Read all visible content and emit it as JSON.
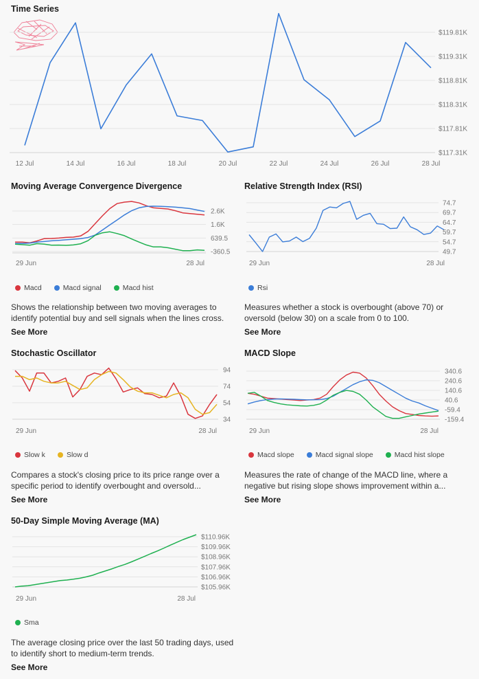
{
  "colors": {
    "blue": "#3b7dd8",
    "red": "#d9363e",
    "green": "#1fb050",
    "yellow": "#e6b422",
    "grid": "#e3e3e3",
    "axis": "#777777"
  },
  "time_series": {
    "title": "Time Series",
    "logo_icon": "pink-scribble-logo"
  },
  "macd": {
    "title": "Moving Average Convergence Divergence",
    "description": "Shows the relationship between two moving averages to identify potential buy and sell signals when the lines cross.",
    "see_more": "See More"
  },
  "rsi": {
    "title": "Relative Strength Index (RSI)",
    "description": "Measures whether a stock is overbought (above 70) or oversold (below 30) on a scale from 0 to 100.",
    "see_more": "See More"
  },
  "stoch": {
    "title": "Stochastic Oscillator",
    "description": "Compares a stock's closing price to its price range over a specific period to identify overbought and oversold...",
    "see_more": "See More"
  },
  "macd_slope": {
    "title": "MACD Slope",
    "description": "Measures the rate of change of the MACD line, where a negative but rising slope shows improvement within a...",
    "see_more": "See More"
  },
  "sma": {
    "title": "50-Day Simple Moving Average (MA)",
    "description": "The average closing price over the last 50 trading days, used to identify short to medium-term trends.",
    "see_more": "See More"
  },
  "chart_data": [
    {
      "id": "time_series",
      "type": "line",
      "title": "Time Series",
      "x_ticks": [
        "12 Jul",
        "14 Jul",
        "16 Jul",
        "18 Jul",
        "20 Jul",
        "22 Jul",
        "24 Jul",
        "26 Jul",
        "28 Jul"
      ],
      "y_ticks": [
        "$119.81K",
        "$119.31K",
        "$118.81K",
        "$118.31K",
        "$117.81K",
        "$117.31K"
      ],
      "ylim": [
        117.31,
        119.81
      ],
      "series": [
        {
          "x": [
            12,
            13,
            14,
            15,
            16,
            17,
            18,
            19,
            20,
            21,
            22,
            23,
            24,
            25,
            26,
            27,
            28
          ],
          "values": [
            117.45,
            119.05,
            119.82,
            117.77,
            118.62,
            119.22,
            118.02,
            117.93,
            117.32,
            117.42,
            120.0,
            118.72,
            118.33,
            117.62,
            117.92,
            119.44,
            118.95
          ],
          "color": "blue"
        }
      ]
    },
    {
      "id": "macd",
      "type": "line",
      "title": "Moving Average Convergence Divergence",
      "x_ticks": [
        "29 Jun",
        "28 Jul"
      ],
      "y_ticks": [
        "2.6K",
        "1.6K",
        "639.5",
        "-360.5"
      ],
      "ylim": [
        -360.5,
        3400
      ],
      "series": [
        {
          "name": "Macd",
          "color": "red",
          "values": [
            400,
            400,
            350,
            480,
            640,
            650,
            680,
            730,
            750,
            830,
            1150,
            1700,
            2250,
            2750,
            3100,
            3200,
            3250,
            3150,
            2950,
            2800,
            2760,
            2720,
            2600,
            2450,
            2400,
            2350,
            2300
          ]
        },
        {
          "name": "Macd signal",
          "color": "blue",
          "values": [
            300,
            300,
            330,
            400,
            440,
            490,
            520,
            560,
            600,
            640,
            720,
            900,
            1250,
            1600,
            1950,
            2300,
            2600,
            2800,
            2900,
            2920,
            2910,
            2880,
            2850,
            2800,
            2750,
            2650,
            2550
          ]
        },
        {
          "name": "Macd hist",
          "color": "green",
          "values": [
            250,
            220,
            180,
            290,
            250,
            180,
            190,
            170,
            200,
            280,
            500,
            880,
            1050,
            1120,
            1000,
            850,
            620,
            400,
            200,
            60,
            60,
            0,
            -100,
            -200,
            -200,
            -150,
            -180
          ]
        }
      ]
    },
    {
      "id": "rsi",
      "type": "line",
      "title": "Relative Strength Index (RSI)",
      "x_ticks": [
        "29 Jun",
        "28 Jul"
      ],
      "y_ticks": [
        "74.7",
        "69.7",
        "64.7",
        "59.7",
        "54.7",
        "49.7"
      ],
      "ylim": [
        49.7,
        74.7
      ],
      "series": [
        {
          "name": "Rsi",
          "color": "blue",
          "values": [
            58.2,
            54.0,
            49.7,
            57.0,
            58.6,
            54.6,
            55.0,
            57.0,
            54.7,
            56.4,
            61.5,
            70.5,
            72.2,
            71.8,
            74.0,
            75.0,
            66.0,
            68.0,
            69.0,
            63.8,
            63.5,
            61.3,
            61.5,
            67.2,
            62.2,
            60.7,
            58.3,
            59.0,
            62.6,
            60.7
          ]
        }
      ]
    },
    {
      "id": "stoch",
      "type": "line",
      "title": "Stochastic Oscillator",
      "x_ticks": [
        "29 Jun",
        "28 Jul"
      ],
      "y_ticks": [
        "94",
        "74",
        "54",
        "34"
      ],
      "ylim": [
        34,
        94
      ],
      "series": [
        {
          "name": "Slow k",
          "color": "red",
          "values": [
            93,
            84,
            68,
            90,
            90,
            78,
            80,
            84,
            61,
            70,
            86,
            90,
            88,
            96,
            83,
            67,
            70,
            72,
            65,
            64,
            60,
            62,
            78,
            62,
            40,
            35,
            38,
            52,
            64
          ]
        },
        {
          "name": "Slow d",
          "color": "yellow",
          "values": [
            86,
            86,
            82,
            84,
            80,
            78,
            78,
            80,
            75,
            70,
            72,
            82,
            88,
            92,
            90,
            82,
            73,
            68,
            66,
            66,
            63,
            60,
            64,
            66,
            60,
            46,
            40,
            42,
            52
          ]
        }
      ]
    },
    {
      "id": "macd_slope",
      "type": "line",
      "title": "MACD Slope",
      "x_ticks": [
        "29 Jun",
        "28 Jul"
      ],
      "y_ticks": [
        "340.6",
        "240.6",
        "140.6",
        "40.6",
        "-59.4",
        "-159.4"
      ],
      "ylim": [
        -159.4,
        340.6
      ],
      "series": [
        {
          "name": "Macd slope",
          "color": "red",
          "values": [
            110,
            100,
            80,
            60,
            55,
            50,
            45,
            40,
            35,
            40,
            45,
            60,
            100,
            180,
            250,
            300,
            330,
            320,
            270,
            190,
            100,
            30,
            -30,
            -70,
            -100,
            -110,
            -120,
            -125,
            -128,
            -125
          ]
        },
        {
          "name": "Macd signal slope",
          "color": "blue",
          "values": [
            0,
            20,
            35,
            45,
            50,
            52,
            50,
            48,
            45,
            42,
            43,
            45,
            55,
            80,
            120,
            160,
            200,
            230,
            250,
            245,
            220,
            180,
            140,
            100,
            60,
            30,
            10,
            -20,
            -45,
            -70
          ]
        },
        {
          "name": "Macd hist slope",
          "color": "green",
          "values": [
            110,
            120,
            80,
            35,
            15,
            0,
            -10,
            -15,
            -20,
            -22,
            -15,
            0,
            40,
            90,
            120,
            140,
            130,
            100,
            40,
            -30,
            -80,
            -130,
            -150,
            -150,
            -135,
            -120,
            -105,
            -95,
            -85,
            -75
          ]
        }
      ]
    },
    {
      "id": "sma",
      "type": "line",
      "title": "50-Day Simple Moving Average (MA)",
      "x_ticks": [
        "29 Jun",
        "28 Jul"
      ],
      "y_ticks": [
        "$110.96K",
        "$109.96K",
        "$108.96K",
        "$107.96K",
        "$106.96K",
        "$105.96K"
      ],
      "ylim": [
        105.96,
        110.96
      ],
      "series": [
        {
          "name": "Sma",
          "color": "green",
          "values": [
            105.96,
            106.03,
            106.08,
            106.17,
            106.27,
            106.37,
            106.47,
            106.57,
            106.62,
            106.7,
            106.79,
            106.92,
            107.08,
            107.3,
            107.5,
            107.7,
            107.92,
            108.12,
            108.36,
            108.62,
            108.88,
            109.15,
            109.4,
            109.68,
            109.96,
            110.23,
            110.5,
            110.73,
            110.96
          ]
        }
      ]
    }
  ]
}
